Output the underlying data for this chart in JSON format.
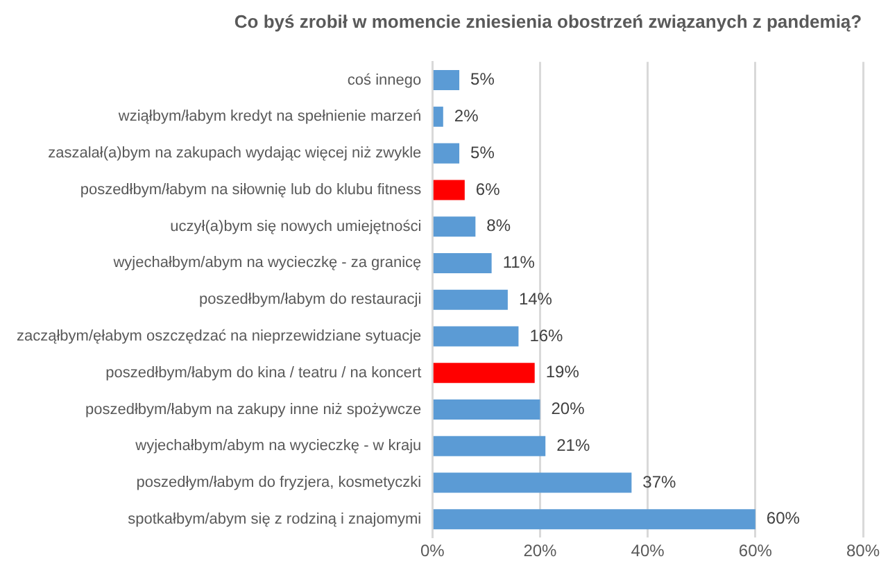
{
  "chart_data": {
    "type": "bar",
    "orientation": "horizontal",
    "title": "Co byś zrobił w momencie zniesienia obostrzeń związanych z pandemią?",
    "categories": [
      "coś innego",
      "wziąłbym/łabym kredyt na spełnienie marzeń",
      "zaszalał(a)bym na zakupach wydając więcej niż zwykle",
      "poszedłbym/łabym na siłownię lub do klubu fitness",
      "uczył(a)bym się nowych umiejętności",
      "wyjechałbym/abym na wycieczkę - za granicę",
      "poszedłbym/łabym do restauracji",
      "zacząłbym/ęłabym oszczędzać na nieprzewidziane sytuacje",
      "poszedłbym/łabym do kina / teatru / na koncert",
      "poszedłbym/łabym na zakupy inne niż spożywcze",
      "wyjechałbym/abym na wycieczkę - w kraju",
      "poszedłym/łabym do fryzjera, kosmetyczki",
      "spotkałbym/abym się z rodziną i znajomymi"
    ],
    "values": [
      5,
      2,
      5,
      6,
      8,
      11,
      14,
      16,
      19,
      20,
      21,
      37,
      60
    ],
    "value_labels": [
      "5%",
      "2%",
      "5%",
      "6%",
      "8%",
      "11%",
      "14%",
      "16%",
      "19%",
      "20%",
      "21%",
      "37%",
      "60%"
    ],
    "colors": [
      "#5b9bd5",
      "#5b9bd5",
      "#5b9bd5",
      "#ff0000",
      "#5b9bd5",
      "#5b9bd5",
      "#5b9bd5",
      "#5b9bd5",
      "#ff0000",
      "#5b9bd5",
      "#5b9bd5",
      "#5b9bd5",
      "#5b9bd5"
    ],
    "xlim": [
      0,
      80
    ],
    "xticks": [
      {
        "value": 0,
        "label": "0%"
      },
      {
        "value": 20,
        "label": "20%"
      },
      {
        "value": 40,
        "label": "40%"
      },
      {
        "value": 60,
        "label": "60%"
      },
      {
        "value": 80,
        "label": "80%"
      }
    ],
    "grid": "x",
    "legend": false
  }
}
